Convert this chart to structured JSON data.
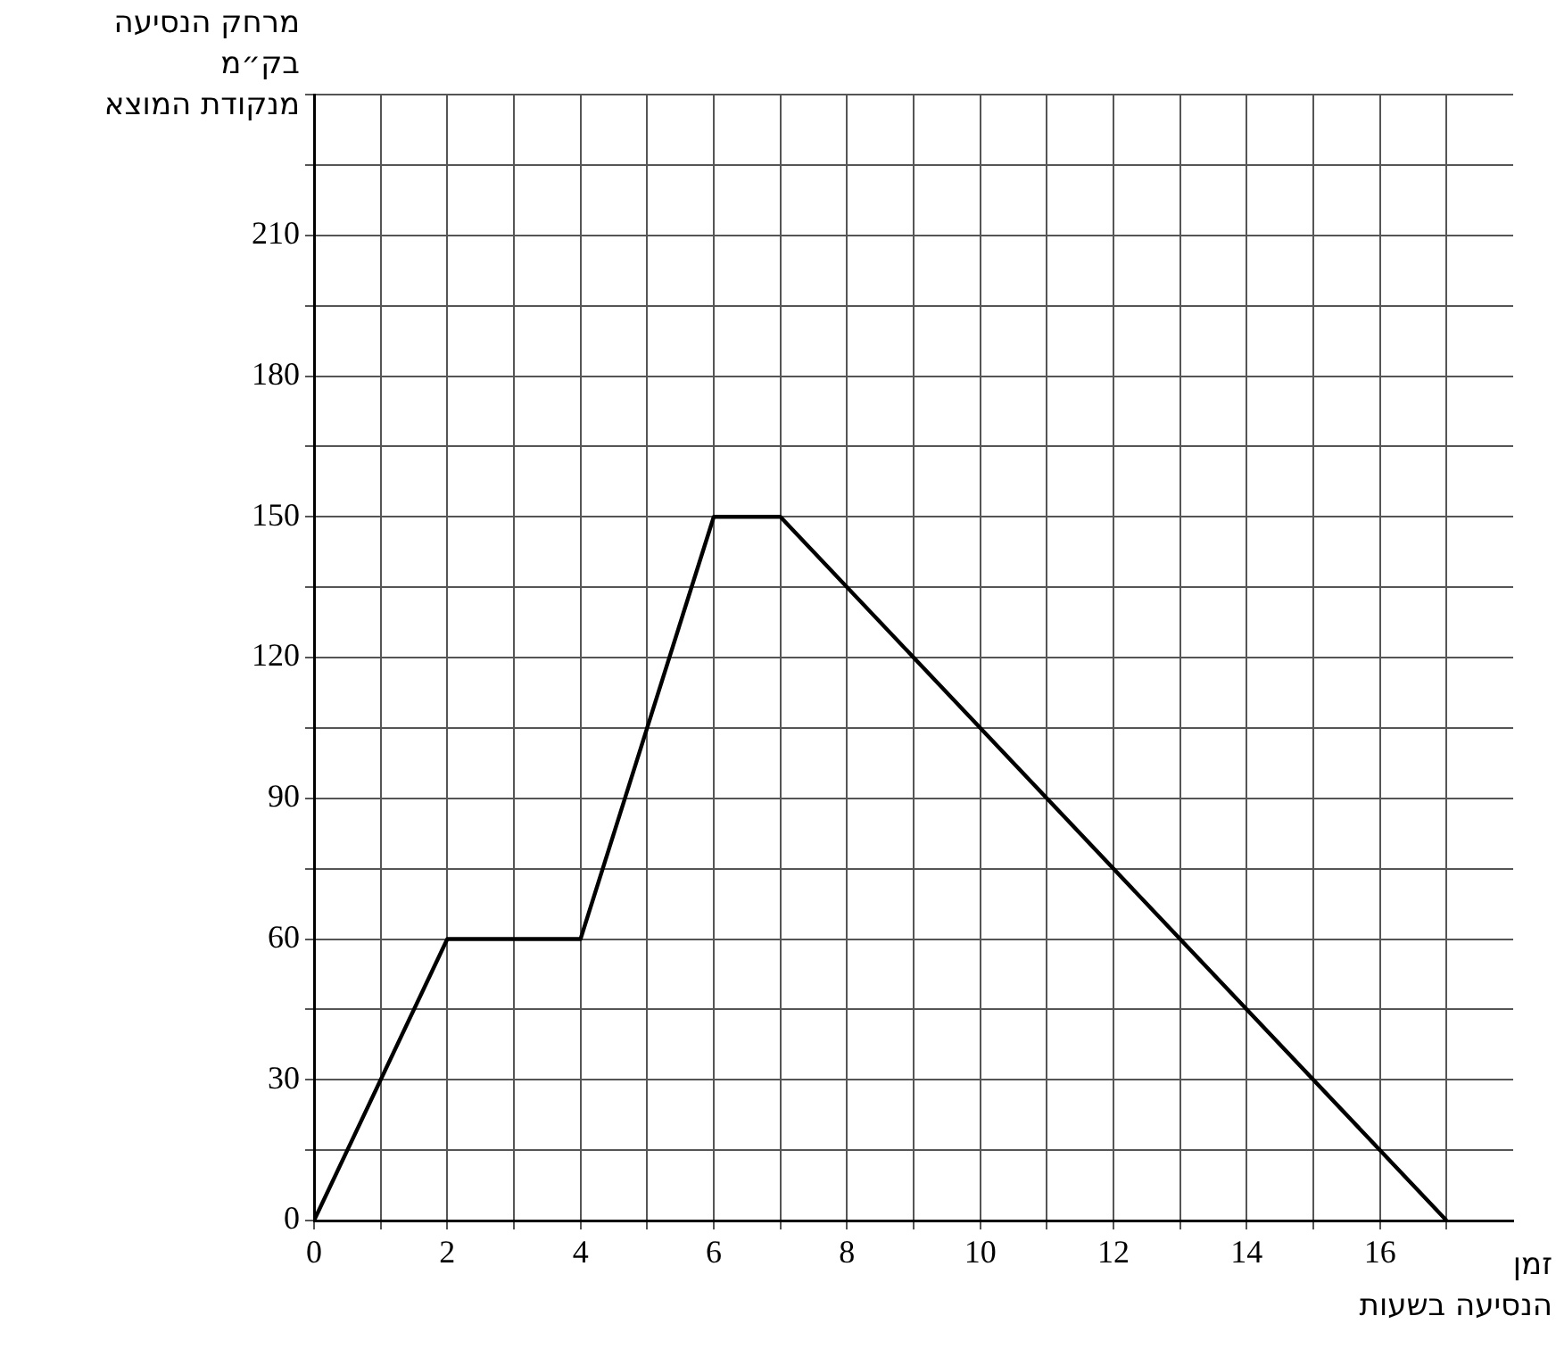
{
  "chart_data": {
    "type": "line",
    "xlabel": "זמן\nהנסיעה בשעות",
    "ylabel": "מרחק הנסיעה\nבק״מ\nמנקודת המוצא",
    "x": [
      0,
      2,
      4,
      6,
      7,
      17
    ],
    "series": [
      {
        "color": "#000000",
        "values": [
          0,
          60,
          60,
          150,
          150,
          0
        ]
      }
    ],
    "xlim": [
      0,
      18
    ],
    "ylim": [
      0,
      240
    ],
    "xticks": [
      0,
      {
        "value": 1,
        "label": null
      },
      2,
      {
        "value": 3,
        "label": null
      },
      4,
      {
        "value": 5,
        "label": null
      },
      6,
      {
        "value": 7,
        "label": null
      },
      8,
      {
        "value": 9,
        "label": null
      },
      10,
      {
        "value": 11,
        "label": null
      },
      12,
      {
        "value": 13,
        "label": null
      },
      14,
      {
        "value": 15,
        "label": null
      },
      16,
      {
        "value": 17,
        "label": null
      }
    ],
    "yticks": [
      0,
      {
        "value": 15,
        "label": null
      },
      30,
      {
        "value": 45,
        "label": null
      },
      60,
      {
        "value": 75,
        "label": null
      },
      90,
      {
        "value": 105,
        "label": null
      },
      120,
      {
        "value": 135,
        "label": null
      },
      150,
      {
        "value": 165,
        "label": null
      },
      180,
      {
        "value": 195,
        "label": null
      },
      210,
      {
        "value": 225,
        "label": null
      },
      {
        "value": 240,
        "label": null
      }
    ],
    "grid": true,
    "legend": false,
    "marker": "none",
    "line_style": "solid"
  }
}
